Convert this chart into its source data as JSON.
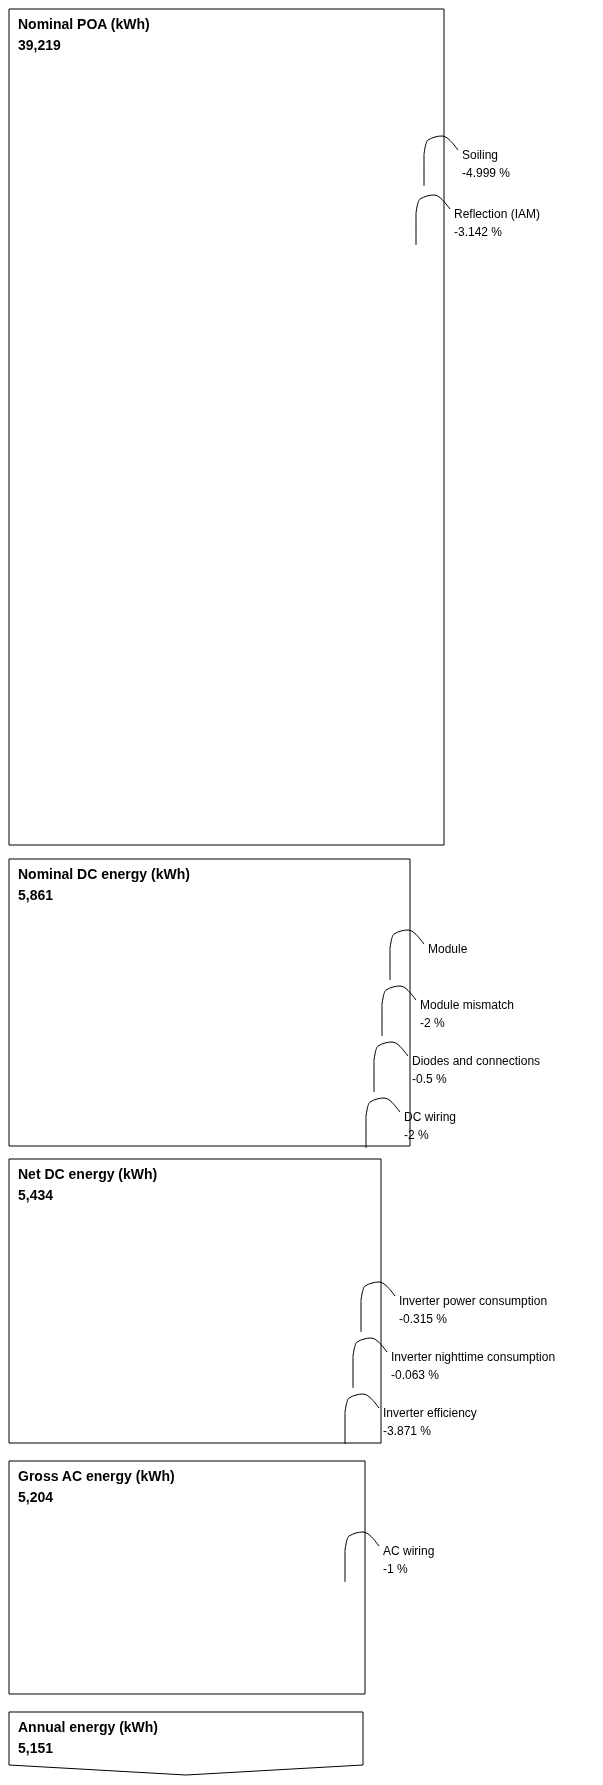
{
  "chart_data": {
    "type": "other",
    "categories": [
      "Nominal POA (kWh)",
      "Nominal DC energy (kWh)",
      "Net DC energy (kWh)",
      "Gross AC energy (kWh)",
      "Annual energy (kWh)"
    ],
    "values": [
      39219,
      5861,
      5434,
      5204,
      5151
    ],
    "value_labels": [
      "39,219",
      "5,861",
      "5,434",
      "5,204",
      "5,151"
    ],
    "annotations": [
      {
        "text": "Soiling\n-4.999 %",
        "x": "Nominal POA (kWh)"
      },
      {
        "text": "Reflection (IAM)\n-3.142 %",
        "x": "Nominal POA (kWh)"
      },
      {
        "text": "Module",
        "x": "Nominal DC energy (kWh)"
      },
      {
        "text": "Module mismatch\n-2 %",
        "x": "Nominal DC energy (kWh)"
      },
      {
        "text": "Diodes and connections\n-0.5 %",
        "x": "Nominal DC energy (kWh)"
      },
      {
        "text": "DC wiring\n-2 %",
        "x": "Nominal DC energy (kWh)"
      },
      {
        "text": "Inverter power consumption\n-0.315 %",
        "x": "Net DC energy (kWh)"
      },
      {
        "text": "Inverter nighttime consumption\n-0.063 %",
        "x": "Net DC energy (kWh)"
      },
      {
        "text": "Inverter efficiency\n-3.871 %",
        "x": "Net DC energy (kWh)"
      },
      {
        "text": "AC wiring\n-1 %",
        "x": "Gross AC energy (kWh)"
      }
    ]
  }
}
